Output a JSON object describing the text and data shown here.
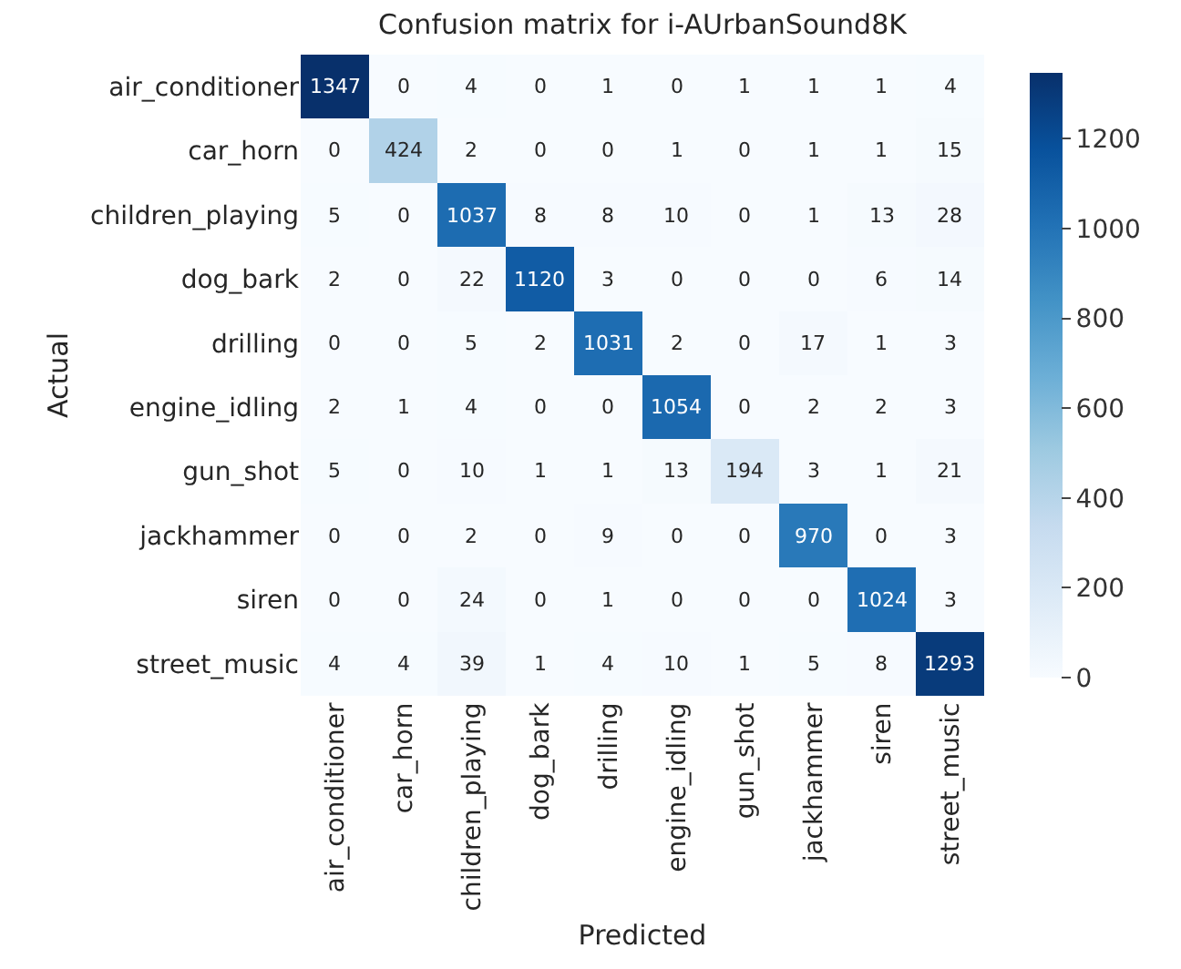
{
  "chart_data": {
    "type": "heatmap",
    "title": "Confusion matrix for i-AUrbanSound8K",
    "xlabel": "Predicted",
    "ylabel": "Actual",
    "categories": [
      "air_conditioner",
      "car_horn",
      "children_playing",
      "dog_bark",
      "drilling",
      "engine_idling",
      "gun_shot",
      "jackhammer",
      "siren",
      "street_music"
    ],
    "y_categories": [
      "air_conditioner",
      "car_horn",
      "children_playing",
      "dog_bark",
      "drilling",
      "engine_idling",
      "gun_shot",
      "jackhammer",
      "siren",
      "street_music"
    ],
    "cells": [
      [
        1347,
        0,
        4,
        0,
        1,
        0,
        1,
        1,
        1,
        4
      ],
      [
        0,
        424,
        2,
        0,
        0,
        1,
        0,
        1,
        1,
        15
      ],
      [
        5,
        0,
        1037,
        8,
        8,
        10,
        0,
        1,
        13,
        28
      ],
      [
        2,
        0,
        22,
        1120,
        3,
        0,
        0,
        0,
        6,
        14
      ],
      [
        0,
        0,
        5,
        2,
        1031,
        2,
        0,
        17,
        1,
        3
      ],
      [
        2,
        1,
        4,
        0,
        0,
        1054,
        0,
        2,
        2,
        3
      ],
      [
        5,
        0,
        10,
        1,
        1,
        13,
        194,
        3,
        1,
        21
      ],
      [
        0,
        0,
        2,
        0,
        9,
        0,
        0,
        970,
        0,
        3
      ],
      [
        0,
        0,
        24,
        0,
        1,
        0,
        0,
        0,
        1024,
        3
      ],
      [
        4,
        4,
        39,
        1,
        4,
        10,
        1,
        5,
        8,
        1293
      ]
    ],
    "clim": [
      0,
      1347
    ],
    "cticks": [
      0,
      200,
      400,
      600,
      800,
      1000,
      1200
    ],
    "data_labels": true
  }
}
